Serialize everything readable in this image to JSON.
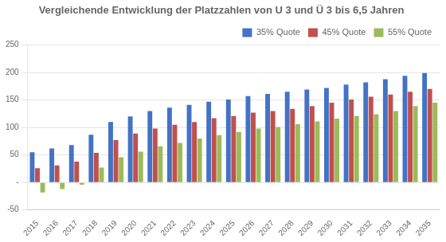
{
  "chart_data": {
    "type": "bar",
    "title": "Vergleichende Entwicklung der Platzzahlen von U 3 und Ü 3 bis 6,5 Jahren",
    "categories": [
      "2015",
      "2016",
      "2017",
      "2018",
      "2019",
      "2020",
      "2021",
      "2022",
      "2023",
      "2024",
      "2025",
      "2026",
      "2027",
      "2028",
      "2029",
      "2030",
      "2031",
      "2032",
      "2033",
      "2034",
      "2035"
    ],
    "series": [
      {
        "name": "35% Quote",
        "color": "#4472C4",
        "values": [
          55,
          62,
          68,
          87,
          110,
          120,
          130,
          136,
          141,
          147,
          151,
          157,
          161,
          165,
          169,
          172,
          178,
          182,
          188,
          194,
          199
        ]
      },
      {
        "name": "45% Quote",
        "color": "#C0504D",
        "values": [
          26,
          31,
          38,
          54,
          77,
          89,
          98,
          105,
          110,
          117,
          121,
          127,
          130,
          134,
          139,
          145,
          151,
          156,
          160,
          165,
          170
        ]
      },
      {
        "name": "55% Quote",
        "color": "#9BBB59",
        "values": [
          -18,
          -12,
          -4,
          27,
          46,
          56,
          66,
          72,
          80,
          86,
          92,
          98,
          101,
          106,
          111,
          116,
          121,
          124,
          130,
          139,
          145
        ]
      }
    ],
    "ylim": [
      -50,
      250
    ],
    "yticks": [
      -50,
      {
        "value": 0,
        "label": "-"
      },
      50,
      100,
      150,
      200,
      250
    ],
    "grid": true,
    "legend": "upper right"
  }
}
